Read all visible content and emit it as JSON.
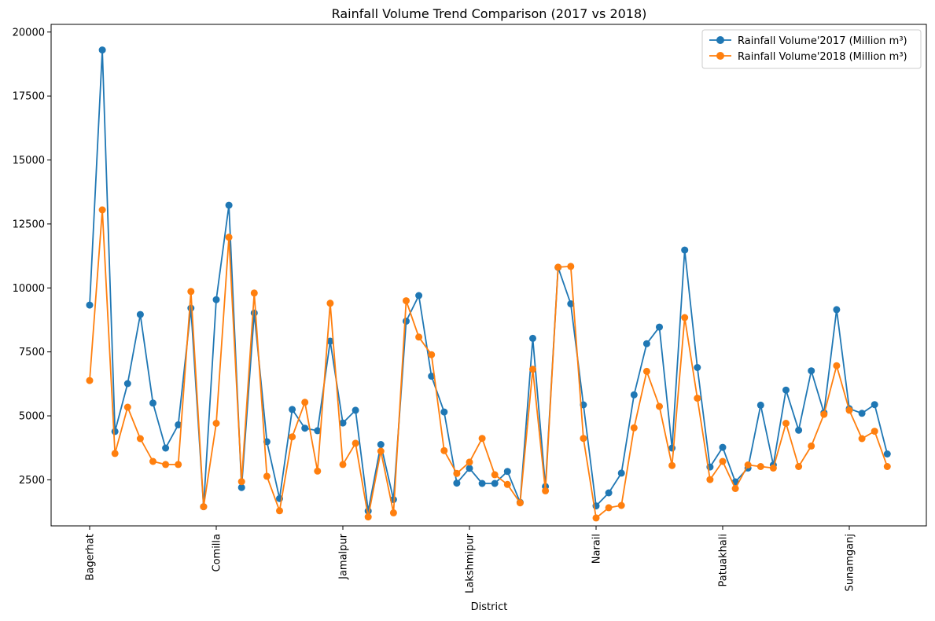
{
  "chart_data": {
    "type": "line",
    "title": "Rainfall Volume Trend Comparison (2017 vs 2018)",
    "xlabel": "District",
    "ylabel": "",
    "ylim": [
      700,
      20300
    ],
    "yticks": [
      2500,
      5000,
      7500,
      10000,
      12500,
      15000,
      17500,
      20000
    ],
    "point_count": 64,
    "x_tick_labels": [
      {
        "index": 0,
        "label": "Bagerhat"
      },
      {
        "index": 10,
        "label": "Comilla"
      },
      {
        "index": 20,
        "label": "Jamalpur"
      },
      {
        "index": 30,
        "label": "Lakshmipur"
      },
      {
        "index": 40,
        "label": "Narail"
      },
      {
        "index": 50,
        "label": "Patuakhali"
      },
      {
        "index": 60,
        "label": "Sunamganj"
      }
    ],
    "legend_position": "top-right",
    "series": [
      {
        "name": "Rainfall Volume'2017 (Million m³)",
        "color": "#1f77b4",
        "values": [
          9330,
          19300,
          4390,
          6260,
          8960,
          5500,
          3740,
          4650,
          9210,
          1450,
          9540,
          13230,
          2200,
          9020,
          3990,
          1770,
          5250,
          4520,
          4420,
          7920,
          4720,
          5220,
          1280,
          3880,
          1730,
          8700,
          9700,
          6550,
          5150,
          2370,
          2950,
          2360,
          2360,
          2830,
          1620,
          8030,
          2240,
          10800,
          9380,
          5430,
          1480,
          1990,
          2760,
          5820,
          7820,
          8470,
          3740,
          11480,
          6890,
          3000,
          3770,
          2420,
          2960,
          5420,
          3080,
          6010,
          4440,
          6760,
          5120,
          9150,
          5280,
          5100,
          5440,
          3510
        ]
      },
      {
        "name": "Rainfall Volume'2018 (Million m³)",
        "color": "#ff7f0e",
        "values": [
          6380,
          13050,
          3530,
          5340,
          4110,
          3220,
          3100,
          3100,
          9860,
          1450,
          4710,
          11980,
          2430,
          9800,
          2640,
          1290,
          4180,
          5530,
          2840,
          9400,
          3100,
          3930,
          1050,
          3620,
          1210,
          9500,
          8080,
          7390,
          3640,
          2750,
          3190,
          4120,
          2700,
          2320,
          1600,
          6820,
          2070,
          10810,
          10840,
          4120,
          1010,
          1410,
          1500,
          4530,
          6740,
          5370,
          3060,
          8840,
          5690,
          2510,
          3220,
          2160,
          3080,
          3020,
          2960,
          4710,
          3020,
          3820,
          5060,
          6960,
          5220,
          4110,
          4400,
          3020
        ]
      }
    ]
  }
}
